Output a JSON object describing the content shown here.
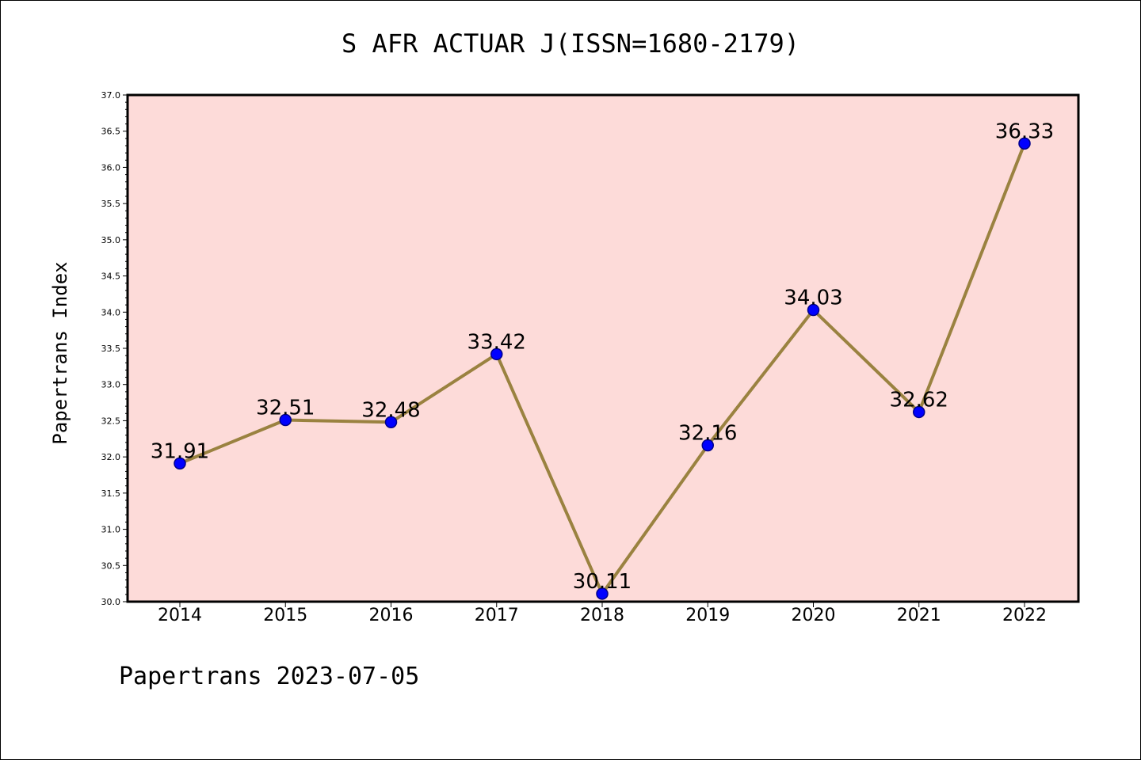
{
  "chart_data": {
    "type": "line",
    "title": "S AFR ACTUAR J(ISSN=1680-2179)",
    "xlabel": "",
    "ylabel": "Papertrans Index",
    "footer": "Papertrans 2023-07-05",
    "categories": [
      "2014",
      "2015",
      "2016",
      "2017",
      "2018",
      "2019",
      "2020",
      "2021",
      "2022"
    ],
    "values": [
      31.91,
      32.51,
      32.48,
      33.42,
      30.11,
      32.16,
      34.03,
      32.62,
      36.33
    ],
    "value_labels": [
      "31.91",
      "32.51",
      "32.48",
      "33.42",
      "30.11",
      "32.16",
      "34.03",
      "32.62",
      "36.33"
    ],
    "ylim": [
      30.0,
      37.0
    ],
    "yticks": [
      "30.0",
      "30.5",
      "31.0",
      "31.5",
      "32.0",
      "32.5",
      "33.0",
      "33.5",
      "34.0",
      "34.5",
      "35.0",
      "35.5",
      "36.0",
      "36.5",
      "37.0"
    ],
    "grid": false,
    "colors": {
      "plot_background": "#fddbd9",
      "line": "#9a8240",
      "marker": "#0000ff",
      "marker_edge": "#00008b"
    }
  }
}
